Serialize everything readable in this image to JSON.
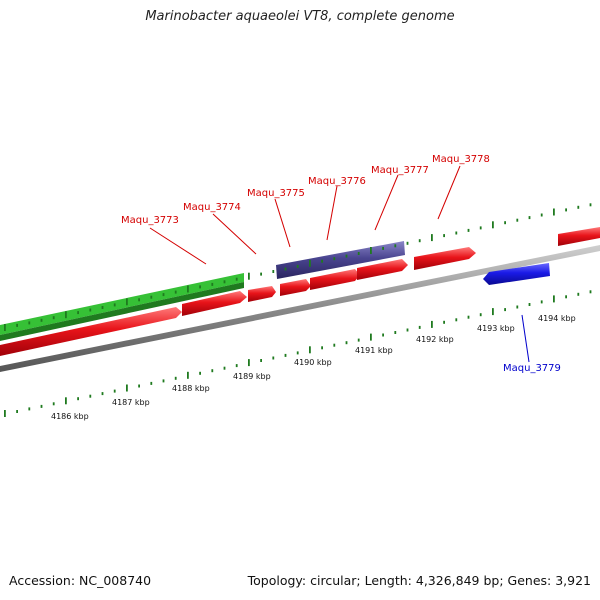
{
  "header": {
    "title": "Marinobacter aquaeolei VT8, complete genome"
  },
  "footer": {
    "accession": "Accession: NC_008740",
    "topology": "Topology: circular; Length: 4,326,849 bp; Genes: 3,921"
  },
  "ruler": {
    "ticks": [
      "4186 kbp",
      "4187 kbp",
      "4188 kbp",
      "4189 kbp",
      "4190 kbp",
      "4191 kbp",
      "4192 kbp",
      "4193 kbp",
      "4194 kbp"
    ]
  },
  "genes": {
    "forward": [
      "Maqu_3773",
      "Maqu_3774",
      "Maqu_3775",
      "Maqu_3776",
      "Maqu_3777",
      "Maqu_3778"
    ],
    "reverse": [
      "Maqu_3779"
    ]
  },
  "colors": {
    "forward_gene": "#e8141a",
    "reverse_gene": "#1a1ae6",
    "rna_bar": "#4a4590",
    "green_feature": "#2fb52f",
    "tick": "#1f7a1f",
    "backbone": "#8a8a8a",
    "forward_label": "#d40000",
    "reverse_label": "#0000cc"
  }
}
